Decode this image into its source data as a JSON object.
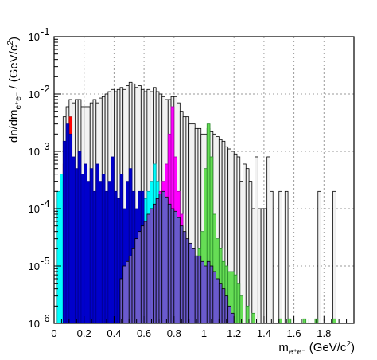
{
  "chart_data": {
    "type": "area",
    "title": "",
    "xlabel": "",
    "ylabel": "",
    "xlabel_parts": {
      "main": "m",
      "sub": "e⁺e⁻",
      "rest": " (GeV/c",
      "sup": "2",
      "end": ")"
    },
    "ylabel_parts": {
      "main": "dn/dm",
      "sub": "e⁺e⁻",
      "rest": " / (GeV/c",
      "sup": "2",
      "end": ")"
    },
    "xlim": [
      0,
      2.0
    ],
    "ylim": [
      1e-06,
      0.1
    ],
    "log_y": true,
    "grid": true,
    "legend": "none",
    "x_ticks": [
      0,
      0.2,
      0.4,
      0.6,
      0.8,
      1,
      1.2,
      1.4,
      1.6,
      1.8
    ],
    "x_tick_labels": [
      "0",
      "0.2",
      "0.4",
      "0.6",
      "0.8",
      "1",
      "1.2",
      "1.4",
      "1.6",
      "1.8"
    ],
    "y_ticks": [
      1e-06,
      1e-05,
      0.0001,
      0.001,
      0.01,
      0.1
    ],
    "y_tick_labels": [
      {
        "base": "10",
        "exp": "-6"
      },
      {
        "base": "10",
        "exp": "-5"
      },
      {
        "base": "10",
        "exp": "-4"
      },
      {
        "base": "10",
        "exp": "-3"
      },
      {
        "base": "10",
        "exp": "-2"
      },
      {
        "base": "10",
        "exp": "-1"
      }
    ],
    "bin_width": 0.02,
    "series": [
      {
        "color": "#f2f2f2",
        "stroke": "#000000",
        "points": [
          [
            0.06,
            0.004
          ],
          [
            0.08,
            0.006
          ],
          [
            0.1,
            0.008
          ],
          [
            0.12,
            0.007
          ],
          [
            0.14,
            0.008
          ],
          [
            0.16,
            0.008
          ],
          [
            0.18,
            0.006
          ],
          [
            0.2,
            0.006
          ],
          [
            0.22,
            0.006
          ],
          [
            0.24,
            0.007
          ],
          [
            0.26,
            0.008
          ],
          [
            0.28,
            0.007
          ],
          [
            0.3,
            0.0085
          ],
          [
            0.32,
            0.009
          ],
          [
            0.34,
            0.01
          ],
          [
            0.36,
            0.011
          ],
          [
            0.38,
            0.012
          ],
          [
            0.4,
            0.011
          ],
          [
            0.42,
            0.012
          ],
          [
            0.44,
            0.013
          ],
          [
            0.46,
            0.012
          ],
          [
            0.48,
            0.014
          ],
          [
            0.5,
            0.016
          ],
          [
            0.52,
            0.015
          ],
          [
            0.54,
            0.013
          ],
          [
            0.56,
            0.014
          ],
          [
            0.58,
            0.012
          ],
          [
            0.6,
            0.011
          ],
          [
            0.62,
            0.012
          ],
          [
            0.64,
            0.011
          ],
          [
            0.66,
            0.013
          ],
          [
            0.68,
            0.011
          ],
          [
            0.7,
            0.01
          ],
          [
            0.72,
            0.009
          ],
          [
            0.74,
            0.008
          ],
          [
            0.76,
            0.008
          ],
          [
            0.78,
            0.009
          ],
          [
            0.8,
            0.009
          ],
          [
            0.82,
            0.007
          ],
          [
            0.84,
            0.005
          ],
          [
            0.86,
            0.004
          ],
          [
            0.88,
            0.004
          ],
          [
            0.9,
            0.003
          ],
          [
            0.92,
            0.003
          ],
          [
            0.94,
            0.0025
          ],
          [
            0.96,
            0.0025
          ],
          [
            0.98,
            0.002
          ],
          [
            1.0,
            0.002
          ],
          [
            1.02,
            0.0025
          ],
          [
            1.04,
            0.0022
          ],
          [
            1.06,
            0.002
          ],
          [
            1.08,
            0.0018
          ],
          [
            1.1,
            0.0016
          ],
          [
            1.12,
            0.0015
          ],
          [
            1.14,
            0.0012
          ],
          [
            1.16,
            0.0011
          ],
          [
            1.18,
            0.001
          ],
          [
            1.2,
            0.0009
          ],
          [
            1.22,
            0.0008
          ],
          [
            1.24,
            0.0003
          ],
          [
            1.26,
            0.0006
          ],
          [
            1.28,
            0.0005
          ],
          [
            1.3,
            0.0003
          ],
          [
            1.32,
            0.0001
          ],
          [
            1.34,
            0.0008
          ],
          [
            1.36,
            0.0001
          ],
          [
            1.38,
            0.0001
          ],
          [
            1.4,
            0.0001
          ],
          [
            1.42,
            0.0008
          ],
          [
            1.44,
            0.0002
          ],
          [
            1.5,
            0.0002
          ],
          [
            1.54,
            0.0002
          ],
          [
            1.76,
            0.0002
          ],
          [
            1.86,
            0.0002
          ]
        ]
      },
      {
        "color": "#ff0000",
        "stroke": "#aa0000",
        "points": [
          [
            0.06,
            0.0006
          ],
          [
            0.08,
            0.0015
          ],
          [
            0.1,
            0.004
          ]
        ]
      },
      {
        "color": "#00ffff",
        "stroke": "#00a0a0",
        "points": [
          [
            0.02,
            0.0002
          ],
          [
            0.04,
            0.0004
          ],
          [
            0.06,
            0.0003
          ],
          [
            0.08,
            0.0002
          ],
          [
            0.1,
            0.0003
          ],
          [
            0.12,
            0.00025
          ],
          [
            0.14,
            0.00012
          ],
          [
            0.16,
            0.00015
          ],
          [
            0.18,
            0.0001
          ],
          [
            0.2,
            0.00012
          ],
          [
            0.22,
            8e-05
          ],
          [
            0.24,
            0.0001
          ],
          [
            0.26,
            7e-05
          ],
          [
            0.28,
            6e-05
          ],
          [
            0.3,
            5e-05
          ],
          [
            0.32,
            8e-05
          ],
          [
            0.34,
            6e-05
          ],
          [
            0.36,
            5e-05
          ],
          [
            0.38,
            4e-05
          ],
          [
            0.4,
            3e-05
          ],
          [
            0.42,
            7e-05
          ],
          [
            0.44,
            2e-05
          ],
          [
            0.46,
            5e-05
          ],
          [
            0.48,
            4e-05
          ],
          [
            0.5,
            4e-05
          ],
          [
            0.52,
            6e-05
          ],
          [
            0.54,
            8e-05
          ],
          [
            0.56,
            0.00012
          ],
          [
            0.58,
            0.0001
          ],
          [
            0.6,
            0.00015
          ],
          [
            0.62,
            0.0002
          ],
          [
            0.64,
            0.0003
          ],
          [
            0.66,
            0.0006
          ],
          [
            0.68,
            0.0003
          ],
          [
            0.7,
            8e-05
          ],
          [
            0.72,
            4e-05
          ],
          [
            0.74,
            1.5e-05
          ],
          [
            0.76,
            5e-06
          ]
        ]
      },
      {
        "color": "#ff00ff",
        "stroke": "#aa00aa",
        "points": [
          [
            0.44,
            2e-06
          ],
          [
            0.46,
            3e-06
          ],
          [
            0.48,
            5e-06
          ],
          [
            0.5,
            8e-06
          ],
          [
            0.52,
            1e-05
          ],
          [
            0.54,
            1.5e-05
          ],
          [
            0.56,
            2e-05
          ],
          [
            0.58,
            3e-05
          ],
          [
            0.6,
            4e-05
          ],
          [
            0.62,
            6e-05
          ],
          [
            0.64,
            8e-05
          ],
          [
            0.66,
            0.0001
          ],
          [
            0.68,
            0.00015
          ],
          [
            0.7,
            0.0002
          ],
          [
            0.72,
            0.0003
          ],
          [
            0.74,
            0.0006
          ],
          [
            0.76,
            0.002
          ],
          [
            0.78,
            0.006
          ],
          [
            0.8,
            0.0008
          ],
          [
            0.82,
            0.0002
          ],
          [
            0.84,
            8e-05
          ],
          [
            0.86,
            3e-05
          ],
          [
            0.88,
            2e-05
          ],
          [
            0.9,
            1.5e-05
          ],
          [
            0.92,
            1e-05
          ],
          [
            0.94,
            8e-06
          ],
          [
            0.96,
            6e-06
          ],
          [
            0.98,
            4e-06
          ],
          [
            1.0,
            3e-06
          ]
        ]
      },
      {
        "color": "#66dd55",
        "stroke": "#2a8a2a",
        "points": [
          [
            0.86,
            4e-06
          ],
          [
            0.88,
            6e-06
          ],
          [
            0.9,
            8e-06
          ],
          [
            0.92,
            1e-05
          ],
          [
            0.94,
            1.5e-05
          ],
          [
            0.96,
            2e-05
          ],
          [
            0.98,
            4e-05
          ],
          [
            1.0,
            0.0005
          ],
          [
            1.02,
            0.003
          ],
          [
            1.04,
            0.0008
          ],
          [
            1.06,
            8e-05
          ],
          [
            1.08,
            3e-05
          ],
          [
            1.1,
            2e-05
          ],
          [
            1.12,
            1.2e-05
          ],
          [
            1.14,
            1e-05
          ],
          [
            1.16,
            8e-06
          ],
          [
            1.18,
            8e-06
          ],
          [
            1.2,
            7e-06
          ],
          [
            1.22,
            5e-06
          ],
          [
            1.24,
            3e-06
          ],
          [
            1.28,
            2e-06
          ],
          [
            1.32,
            1.5e-06
          ],
          [
            1.5,
            1.2e-06
          ],
          [
            1.56,
            1.2e-06
          ],
          [
            1.66,
            1.2e-06
          ],
          [
            1.74,
            1.2e-06
          ],
          [
            1.86,
            1.2e-06
          ]
        ]
      },
      {
        "color": "#0000cc",
        "stroke": "#000088",
        "points": [
          [
            0.06,
            0.0015
          ],
          [
            0.08,
            0.003
          ],
          [
            0.1,
            0.002
          ],
          [
            0.12,
            0.0008
          ],
          [
            0.14,
            0.0005
          ],
          [
            0.16,
            0.001
          ],
          [
            0.18,
            0.0004
          ],
          [
            0.2,
            0.0006
          ],
          [
            0.22,
            0.0003
          ],
          [
            0.24,
            0.0005
          ],
          [
            0.26,
            0.0002
          ],
          [
            0.28,
            0.0006
          ],
          [
            0.3,
            0.0003
          ],
          [
            0.32,
            0.0004
          ],
          [
            0.34,
            0.0002
          ],
          [
            0.36,
            0.0003
          ],
          [
            0.38,
            0.0008
          ],
          [
            0.4,
            0.0002
          ],
          [
            0.42,
            0.00015
          ],
          [
            0.44,
            0.0004
          ],
          [
            0.46,
            0.0001
          ],
          [
            0.48,
            0.0003
          ],
          [
            0.5,
            0.0005
          ],
          [
            0.52,
            0.0002
          ],
          [
            0.54,
            0.0001
          ],
          [
            0.56,
            0.0002
          ],
          [
            0.58,
            0.0002
          ]
        ]
      },
      {
        "color": "#6a5acd",
        "stroke": "#000000",
        "points": [
          [
            0.44,
            6e-06
          ],
          [
            0.46,
            1e-05
          ],
          [
            0.48,
            1.2e-05
          ],
          [
            0.5,
            1.5e-05
          ],
          [
            0.52,
            2e-05
          ],
          [
            0.54,
            3e-05
          ],
          [
            0.56,
            4e-05
          ],
          [
            0.58,
            5e-05
          ],
          [
            0.6,
            6e-05
          ],
          [
            0.62,
            8e-05
          ],
          [
            0.64,
            0.0001
          ],
          [
            0.66,
            0.00012
          ],
          [
            0.68,
            0.00015
          ],
          [
            0.7,
            0.00018
          ],
          [
            0.72,
            0.0002
          ],
          [
            0.74,
            0.00016
          ],
          [
            0.76,
            0.00012
          ],
          [
            0.78,
            0.0001
          ],
          [
            0.8,
            9e-05
          ],
          [
            0.82,
            7e-05
          ],
          [
            0.84,
            5e-05
          ],
          [
            0.86,
            4e-05
          ],
          [
            0.88,
            3e-05
          ],
          [
            0.9,
            2.5e-05
          ],
          [
            0.92,
            2e-05
          ],
          [
            0.94,
            1.5e-05
          ],
          [
            0.96,
            1.5e-05
          ],
          [
            0.98,
            1.2e-05
          ],
          [
            1.0,
            1e-05
          ],
          [
            1.02,
            1.2e-05
          ],
          [
            1.04,
            1e-05
          ],
          [
            1.06,
            8e-06
          ],
          [
            1.08,
            6e-06
          ],
          [
            1.1,
            5e-06
          ],
          [
            1.12,
            4e-06
          ],
          [
            1.14,
            3e-06
          ],
          [
            1.16,
            2e-06
          ],
          [
            1.18,
            1.5e-06
          ]
        ]
      }
    ]
  }
}
